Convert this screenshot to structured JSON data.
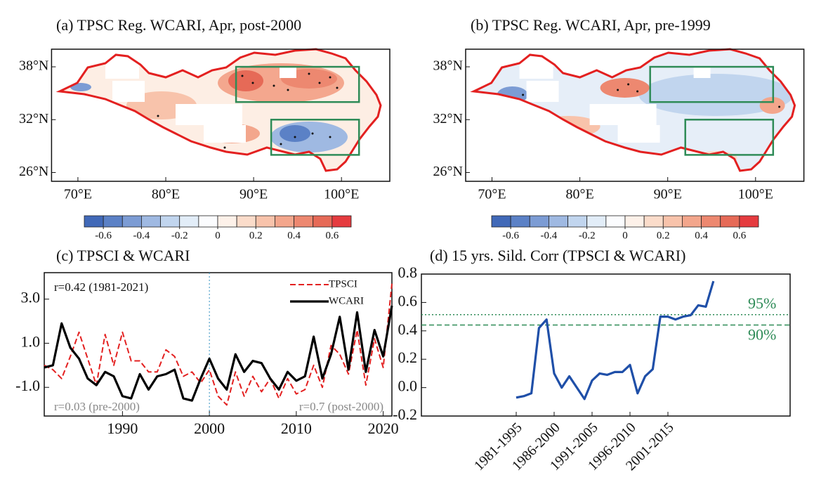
{
  "chart_data": [
    {
      "type": "map",
      "title": "(a) TPSC Reg. WCARI, Apr, post-2000",
      "xlim": [
        67,
        105.5
      ],
      "ylim": [
        25,
        40
      ],
      "xticks": [
        {
          "value": 70,
          "label": "70°E"
        },
        {
          "value": 80,
          "label": "80°E"
        },
        {
          "value": 90,
          "label": "90°E"
        },
        {
          "value": 100,
          "label": "100°E"
        }
      ],
      "yticks": [
        {
          "value": 26,
          "label": "26°N"
        },
        {
          "value": 32,
          "label": "32°N"
        },
        {
          "value": 38,
          "label": "38°N"
        }
      ],
      "boxes": [
        {
          "lon": [
            88,
            102
          ],
          "lat": [
            34,
            38
          ]
        },
        {
          "lon": [
            92,
            102
          ],
          "lat": [
            28,
            32
          ]
        }
      ],
      "box_color": "#2e8b57",
      "outline_color": "#e32020",
      "colorbar": {
        "lim": [
          -0.7,
          0.7
        ],
        "ticks": [
          -0.6,
          -0.4,
          -0.2,
          0,
          0.2,
          0.4,
          0.6
        ],
        "colors": [
          "#4169b8",
          "#5b81c6",
          "#7c9cd4",
          "#9fb9e2",
          "#c1d5ee",
          "#e2edf8",
          "#fbfcfe",
          "#fdf1e9",
          "#fbdcca",
          "#f8c3ab",
          "#f3a68c",
          "#ed8870",
          "#e66a57",
          "#e53b3f"
        ]
      }
    },
    {
      "type": "map",
      "title": "(b) TPSC Reg. WCARI, Apr, pre-1999",
      "xlim": [
        67,
        105.5
      ],
      "ylim": [
        25,
        40
      ],
      "xticks": [
        {
          "value": 70,
          "label": "70°E"
        },
        {
          "value": 80,
          "label": "80°E"
        },
        {
          "value": 90,
          "label": "90°E"
        },
        {
          "value": 100,
          "label": "100°E"
        }
      ],
      "yticks": [
        {
          "value": 26,
          "label": "26°N"
        },
        {
          "value": 32,
          "label": "32°N"
        },
        {
          "value": 38,
          "label": "38°N"
        }
      ],
      "boxes": [
        {
          "lon": [
            88,
            102
          ],
          "lat": [
            34,
            38
          ]
        },
        {
          "lon": [
            92,
            102
          ],
          "lat": [
            28,
            32
          ]
        }
      ],
      "box_color": "#2e8b57",
      "outline_color": "#e32020",
      "colorbar": {
        "lim": [
          -0.7,
          0.7
        ],
        "ticks": [
          -0.6,
          -0.4,
          -0.2,
          0,
          0.2,
          0.4,
          0.6
        ],
        "colors": [
          "#4169b8",
          "#5b81c6",
          "#7c9cd4",
          "#9fb9e2",
          "#c1d5ee",
          "#e2edf8",
          "#fbfcfe",
          "#fdf1e9",
          "#fbdcca",
          "#f8c3ab",
          "#f3a68c",
          "#ed8870",
          "#e66a57",
          "#e53b3f"
        ]
      }
    },
    {
      "type": "line",
      "title": "(c) TPSCI & WCARI",
      "x": [
        1981,
        1982,
        1983,
        1984,
        1985,
        1986,
        1987,
        1988,
        1989,
        1990,
        1991,
        1992,
        1993,
        1994,
        1995,
        1996,
        1997,
        1998,
        1999,
        2000,
        2001,
        2002,
        2003,
        2004,
        2005,
        2006,
        2007,
        2008,
        2009,
        2010,
        2011,
        2012,
        2013,
        2014,
        2015,
        2016,
        2017,
        2018,
        2019,
        2020,
        2021
      ],
      "xlim": [
        1981,
        2021
      ],
      "xticks": [
        1990,
        2000,
        2010,
        2020
      ],
      "ylim": [
        -2.3,
        4.2
      ],
      "yticks": [
        {
          "value": -1,
          "label": "-1.0"
        },
        {
          "value": 1,
          "label": "1.0"
        },
        {
          "value": 3,
          "label": "3.0"
        }
      ],
      "vline": 2000,
      "legend": "upper right",
      "annotations": [
        "r=0.42 (1981-2021)",
        "r=0.03 (pre-2000)",
        "r=0.7  (post-2000)"
      ],
      "series": [
        {
          "name": "TPSCI",
          "color": "#e32020",
          "dash": true,
          "values": [
            0.0,
            -0.2,
            -0.6,
            0.4,
            1.5,
            0.3,
            -0.9,
            1.4,
            0.0,
            1.5,
            0.2,
            0.2,
            -0.3,
            -0.3,
            0.7,
            0.4,
            -0.5,
            -0.3,
            -0.8,
            -0.2,
            -1.4,
            -1.8,
            -0.3,
            -1.4,
            -0.5,
            -1.2,
            -0.6,
            -1.5,
            -0.6,
            -1.3,
            -1.1,
            0.0,
            -1.0,
            0.9,
            0.5,
            -0.4,
            1.6,
            -0.9,
            1.2,
            -0.1,
            3.7
          ]
        },
        {
          "name": "WCARI",
          "color": "#000000",
          "dash": false,
          "values": [
            -0.1,
            0.0,
            1.9,
            0.8,
            0.3,
            -0.6,
            -0.9,
            -0.3,
            -0.5,
            -1.4,
            -1.5,
            -0.4,
            -1.1,
            -0.5,
            -0.4,
            -0.2,
            -1.5,
            -1.6,
            -0.6,
            0.3,
            -0.6,
            -1.1,
            0.5,
            -0.3,
            0.2,
            0.1,
            -0.6,
            -1.1,
            -0.3,
            -0.7,
            -0.5,
            1.3,
            -0.6,
            0.5,
            2.2,
            -0.2,
            2.4,
            -0.3,
            1.6,
            0.4,
            2.7
          ]
        }
      ]
    },
    {
      "type": "line",
      "title": "(d) 15 yrs. Sild. Corr (TPSCI & WCARI)",
      "categories": [
        "1981-1995",
        null,
        null,
        null,
        null,
        "1986-2000",
        null,
        null,
        null,
        null,
        "1991-2005",
        null,
        null,
        null,
        null,
        "1996-2010",
        null,
        null,
        null,
        null,
        "2001-2015",
        null,
        null,
        null,
        null,
        null,
        null
      ],
      "ylim": [
        -0.2,
        0.8
      ],
      "yticks": [
        -0.2,
        {
          "value": 0,
          "label": "0.0"
        },
        0.2,
        0.4,
        0.6,
        0.8
      ],
      "thresholds": [
        {
          "name": "95%",
          "value": 0.514,
          "dash": "2 3"
        },
        {
          "name": "90%",
          "value": 0.441,
          "dash": "7 4"
        }
      ],
      "threshold_color": "#2e8b57",
      "series": [
        {
          "color": "#1f4fa8",
          "values": [
            -0.07,
            -0.06,
            -0.04,
            0.42,
            0.48,
            0.1,
            0.0,
            0.08,
            0.0,
            -0.08,
            0.05,
            0.1,
            0.09,
            0.11,
            0.11,
            0.16,
            -0.04,
            0.08,
            0.13,
            0.5,
            0.5,
            0.48,
            0.5,
            0.51,
            0.58,
            0.57,
            0.75
          ]
        }
      ]
    }
  ]
}
